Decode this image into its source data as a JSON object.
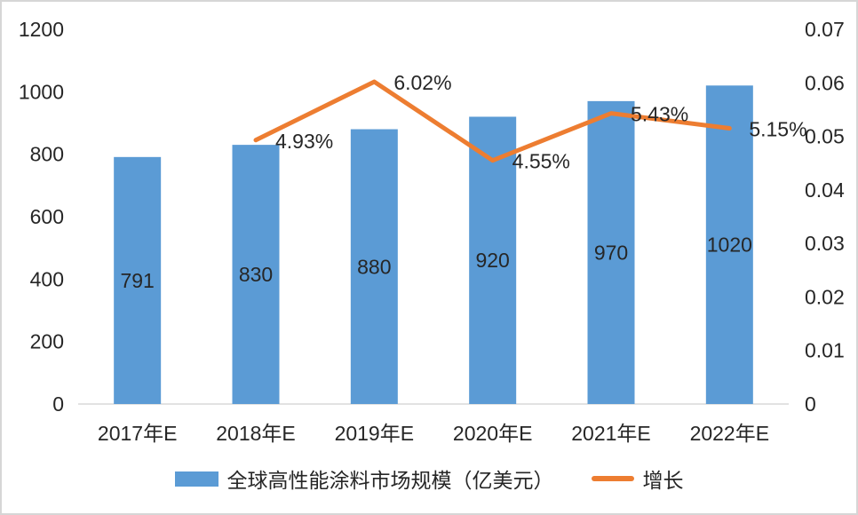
{
  "chart_data": {
    "type": "bar",
    "subtype": "bar-line-combo",
    "categories": [
      "2017年E",
      "2018年E",
      "2019年E",
      "2020年E",
      "2021年E",
      "2022年E"
    ],
    "series": [
      {
        "name": "全球高性能涂料市场规模（亿美元）",
        "type": "bar",
        "axis": "left",
        "values": [
          791,
          830,
          880,
          920,
          970,
          1020
        ],
        "data_labels": [
          "791",
          "830",
          "880",
          "920",
          "970",
          "1020"
        ]
      },
      {
        "name": "增长",
        "type": "line",
        "axis": "right",
        "values": [
          null,
          0.0493,
          0.0602,
          0.0455,
          0.0543,
          0.0515
        ],
        "data_labels": [
          "",
          "4.93%",
          "6.02%",
          "4.55%",
          "5.43%",
          "5.15%"
        ]
      }
    ],
    "left_axis": {
      "min": 0,
      "max": 1200,
      "step": 200,
      "tick_labels": [
        "1200",
        "1000",
        "800",
        "600",
        "400",
        "200",
        "0"
      ]
    },
    "right_axis": {
      "min": 0,
      "max": 0.07,
      "step": 0.01,
      "tick_labels": [
        "0.07",
        "0.06",
        "0.05",
        "0.04",
        "0.03",
        "0.02",
        "0.01",
        "0"
      ]
    },
    "grid": false,
    "legend_position": "bottom",
    "title": ""
  },
  "legend": {
    "bar_label": "全球高性能涂料市场规模（亿美元）",
    "line_label": "增长"
  },
  "colors": {
    "bar": "#5B9BD5",
    "line": "#ED7D31",
    "text": "#262626",
    "axis_line": "#d9d9d9",
    "background": "#ffffff",
    "border": "#d6d6d6"
  }
}
